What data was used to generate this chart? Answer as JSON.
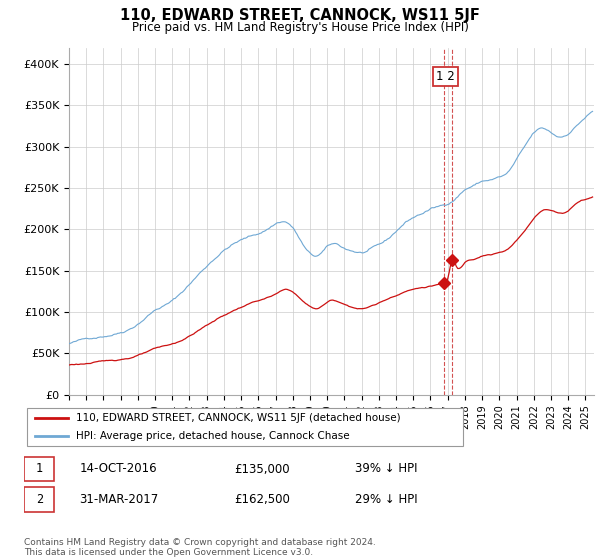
{
  "title": "110, EDWARD STREET, CANNOCK, WS11 5JF",
  "subtitle": "Price paid vs. HM Land Registry's House Price Index (HPI)",
  "ylabel_ticks": [
    "£0",
    "£50K",
    "£100K",
    "£150K",
    "£200K",
    "£250K",
    "£300K",
    "£350K",
    "£400K"
  ],
  "ytick_values": [
    0,
    50000,
    100000,
    150000,
    200000,
    250000,
    300000,
    350000,
    400000
  ],
  "ylim": [
    0,
    420000
  ],
  "xlim_start": 1995.0,
  "xlim_end": 2025.5,
  "hpi_color": "#6fa8d4",
  "price_color": "#cc1111",
  "dashed_line_color": "#cc3333",
  "grid_color": "#cccccc",
  "background_color": "#ffffff",
  "legend_label_red": "110, EDWARD STREET, CANNOCK, WS11 5JF (detached house)",
  "legend_label_blue": "HPI: Average price, detached house, Cannock Chase",
  "purchase1_date": "14-OCT-2016",
  "purchase1_price": "£135,000",
  "purchase1_hpi": "39% ↓ HPI",
  "purchase2_date": "31-MAR-2017",
  "purchase2_price": "£162,500",
  "purchase2_hpi": "29% ↓ HPI",
  "footer": "Contains HM Land Registry data © Crown copyright and database right 2024.\nThis data is licensed under the Open Government Licence v3.0.",
  "purchase1_year": 2016.79,
  "purchase2_year": 2017.25,
  "purchase1_price_val": 135000,
  "purchase2_price_val": 162500
}
